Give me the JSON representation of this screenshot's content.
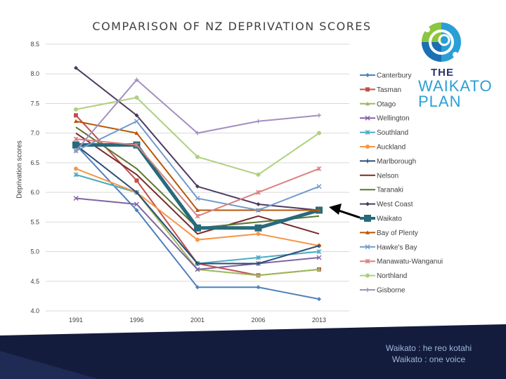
{
  "title": "COMPARISON OF NZ DEPRIVATION SCORES",
  "footer": {
    "line1": "Waikato : he reo kotahi",
    "line2": "Waikato : one voice"
  },
  "logo": {
    "the": "THE",
    "line1": "WAIKATO",
    "line2": "PLAN"
  },
  "chart_data": {
    "type": "line",
    "title": "COMPARISON OF NZ DEPRIVATION SCORES",
    "xlabel": "",
    "ylabel": "Deprivation scores",
    "categories": [
      "1991",
      "1996",
      "2001",
      "2006",
      "2013"
    ],
    "ylim": [
      4.0,
      8.5
    ],
    "yticks": [
      "4.0",
      "4.5",
      "5.0",
      "5.5",
      "6.0",
      "6.5",
      "7.0",
      "7.5",
      "8.0",
      "8.5"
    ],
    "grid": true,
    "legend_position": "right",
    "series": [
      {
        "name": "Canterbury",
        "color": "#4f81bd",
        "marker": "diamond",
        "values": [
          6.8,
          5.7,
          4.4,
          4.4,
          4.2
        ]
      },
      {
        "name": "Tasman",
        "color": "#c0504d",
        "marker": "square",
        "values": [
          7.3,
          6.2,
          4.8,
          4.6,
          4.7
        ]
      },
      {
        "name": "Otago",
        "color": "#9bbb59",
        "marker": "triangle",
        "values": [
          6.3,
          6.0,
          4.7,
          4.6,
          4.7
        ]
      },
      {
        "name": "Wellington",
        "color": "#8064a2",
        "marker": "x",
        "values": [
          5.9,
          5.8,
          4.7,
          4.8,
          4.9
        ]
      },
      {
        "name": "Southland",
        "color": "#4bacc6",
        "marker": "star",
        "values": [
          6.3,
          6.0,
          4.8,
          4.9,
          5.0
        ]
      },
      {
        "name": "Auckland",
        "color": "#f79646",
        "marker": "circle",
        "values": [
          6.4,
          6.0,
          5.2,
          5.3,
          5.1
        ]
      },
      {
        "name": "Marlborough",
        "color": "#2c4d75",
        "marker": "plus",
        "values": [
          6.8,
          6.0,
          4.8,
          4.8,
          5.1
        ]
      },
      {
        "name": "Nelson",
        "color": "#772c2a",
        "marker": "none",
        "values": [
          7.0,
          6.3,
          5.3,
          5.6,
          5.3
        ]
      },
      {
        "name": "Taranaki",
        "color": "#5f7530",
        "marker": "none",
        "values": [
          7.1,
          6.4,
          5.4,
          5.5,
          5.6
        ]
      },
      {
        "name": "West Coast",
        "color": "#4d3b62",
        "marker": "diamond",
        "values": [
          8.1,
          7.3,
          6.1,
          5.8,
          5.7
        ]
      },
      {
        "name": "Waikato",
        "color": "#276a7c",
        "marker": "square",
        "values": [
          6.8,
          6.8,
          5.4,
          5.4,
          5.7
        ]
      },
      {
        "name": "Bay of Plenty",
        "color": "#b65708",
        "marker": "triangle",
        "values": [
          7.2,
          7.0,
          5.7,
          5.7,
          5.7
        ]
      },
      {
        "name": "Hawke's Bay",
        "color": "#729aca",
        "marker": "x",
        "values": [
          6.7,
          7.2,
          5.9,
          5.7,
          6.1
        ]
      },
      {
        "name": "Manawatu-Wanganui",
        "color": "#d9827f",
        "marker": "star",
        "values": [
          6.9,
          6.8,
          5.6,
          6.0,
          6.4
        ]
      },
      {
        "name": "Northland",
        "color": "#afd07f",
        "marker": "circle",
        "values": [
          7.4,
          7.6,
          6.6,
          6.3,
          7.0
        ]
      },
      {
        "name": "Gisborne",
        "color": "#a28fc0",
        "marker": "plus",
        "values": [
          6.7,
          7.9,
          7.0,
          7.2,
          7.3
        ]
      }
    ]
  }
}
